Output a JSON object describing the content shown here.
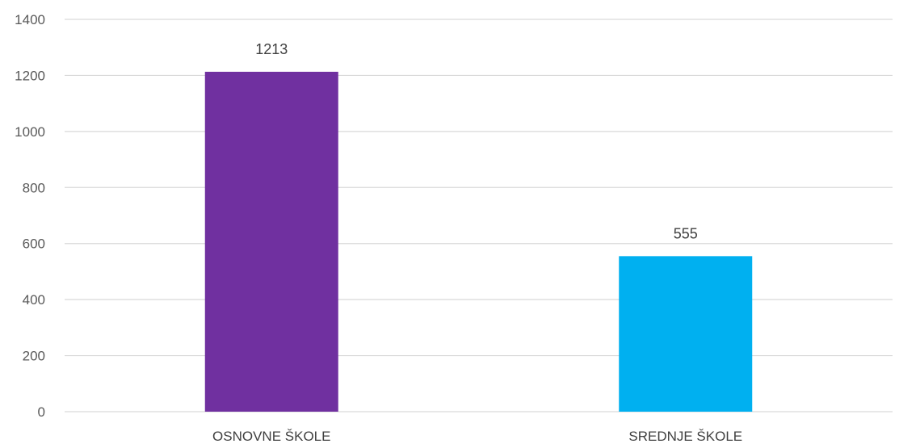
{
  "chart_data": {
    "type": "bar",
    "categories": [
      "OSNOVNE ŠKOLE",
      "SREDNJE ŠKOLE"
    ],
    "values": [
      1213,
      555
    ],
    "data_labels": [
      "1213",
      "555"
    ],
    "bar_colors": [
      "#7030a0",
      "#00b0f0"
    ],
    "title": "",
    "xlabel": "",
    "ylabel": "",
    "ylim": [
      0,
      1400
    ],
    "yticks": [
      0,
      200,
      400,
      600,
      800,
      1000,
      1200,
      1400
    ],
    "ytick_labels": [
      "0",
      "200",
      "400",
      "600",
      "800",
      "1000",
      "1200",
      "1400"
    ],
    "grid": true,
    "legend": "none"
  }
}
